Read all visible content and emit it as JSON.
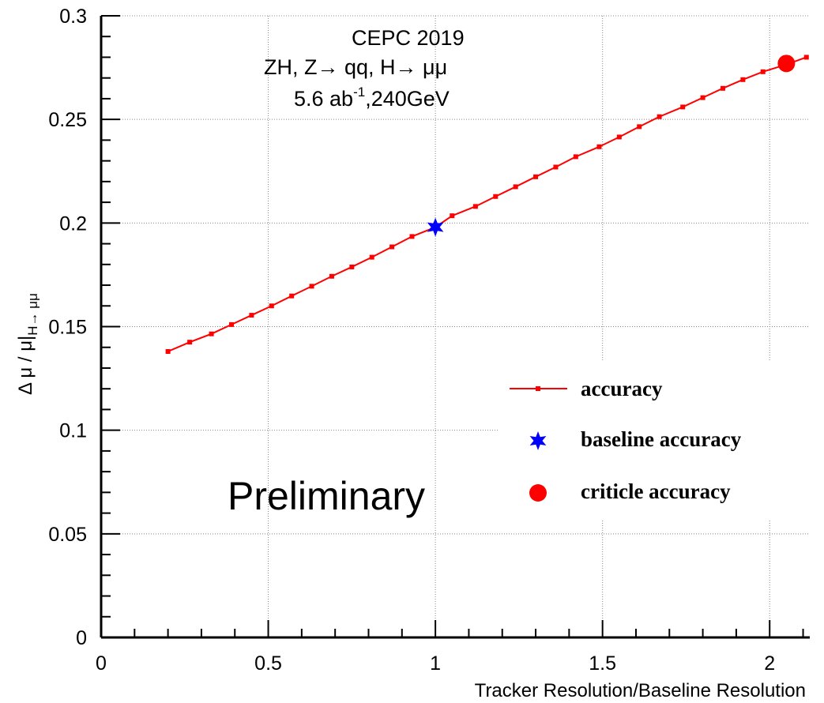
{
  "chart_data": {
    "type": "line",
    "xlabel": "Tracker Resolution/Baseline Resolution",
    "ylabel": {
      "main": "Δ μ / μ|",
      "sub": "H→ μμ"
    },
    "xlim": [
      0,
      2.12
    ],
    "ylim": [
      0,
      0.3
    ],
    "x_ticks": [
      0,
      0.5,
      1,
      1.5,
      2
    ],
    "x_tick_labels": [
      "0",
      "0.5",
      "1",
      "1.5",
      "2"
    ],
    "y_ticks": [
      0,
      0.05,
      0.1,
      0.15,
      0.2,
      0.25,
      0.3
    ],
    "y_tick_labels": [
      "0",
      "0.05",
      "0.1",
      "0.15",
      "0.2",
      "0.25",
      "0.3"
    ],
    "grid": true,
    "annotations": {
      "line1": "CEPC 2019",
      "line2": "ZH, Z→ qq, H→ μμ",
      "line3_pre": "5.6 ab",
      "line3_sup": "-1",
      "line3_post": ",240GeV",
      "watermark": "Preliminary"
    },
    "legend": {
      "placement": "bottom-right",
      "entries": [
        {
          "label": "accuracy",
          "color": "#ff0000",
          "marker": "line-square"
        },
        {
          "label": "baseline accuracy",
          "color": "#0000ff",
          "marker": "star"
        },
        {
          "label": "criticle accuracy",
          "color": "#ff0000",
          "marker": "circle"
        }
      ]
    },
    "series": [
      {
        "name": "accuracy",
        "color": "#ff0000",
        "x": [
          0.2,
          0.265,
          0.33,
          0.39,
          0.45,
          0.51,
          0.57,
          0.63,
          0.69,
          0.75,
          0.81,
          0.87,
          0.93,
          1.0,
          1.05,
          1.12,
          1.18,
          1.24,
          1.3,
          1.36,
          1.42,
          1.49,
          1.55,
          1.61,
          1.67,
          1.74,
          1.8,
          1.86,
          1.92,
          1.98,
          2.05,
          2.11
        ],
        "y": [
          0.138,
          0.1425,
          0.1465,
          0.151,
          0.1555,
          0.16,
          0.1648,
          0.1695,
          0.1743,
          0.1788,
          0.1835,
          0.1885,
          0.1935,
          0.198,
          0.2035,
          0.208,
          0.2128,
          0.2175,
          0.2223,
          0.227,
          0.232,
          0.2368,
          0.2415,
          0.2465,
          0.2513,
          0.256,
          0.2605,
          0.265,
          0.2692,
          0.273,
          0.2765,
          0.28
        ]
      }
    ],
    "highlights": [
      {
        "name": "baseline accuracy",
        "x": 1.0,
        "y": 0.198,
        "color": "#0000ff",
        "marker": "star"
      },
      {
        "name": "criticle accuracy",
        "x": 2.05,
        "y": 0.277,
        "color": "#ff0000",
        "marker": "circle"
      }
    ]
  }
}
